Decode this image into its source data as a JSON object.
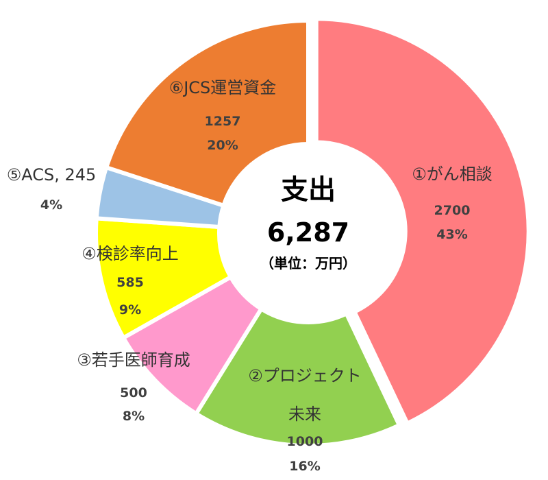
{
  "chart_data": {
    "type": "pie",
    "center": {
      "title": "支出",
      "total": "6,287",
      "unit": "（単位：万円）"
    },
    "slices": [
      {
        "name": "①がん相談",
        "name_line2": "",
        "value": 2700,
        "percent": "43%",
        "color": "#FF7C80"
      },
      {
        "name": "②プロジェクト",
        "name_line2": "未来",
        "value": 1000,
        "percent": "16%",
        "color": "#92D050"
      },
      {
        "name": "③若手医師育成",
        "name_line2": "",
        "value": 500,
        "percent": "8%",
        "color": "#FF99CC"
      },
      {
        "name": "④検診率向上",
        "name_line2": "",
        "value": 585,
        "percent": "9%",
        "color": "#FFFF00"
      },
      {
        "name": "⑤ACS, 245",
        "name_line2": "",
        "value": 245,
        "percent": "4%",
        "color": "#9DC3E6"
      },
      {
        "name": "⑥JCS運営資金",
        "name_line2": "",
        "value": 1257,
        "percent": "20%",
        "color": "#ED7D31"
      }
    ]
  }
}
